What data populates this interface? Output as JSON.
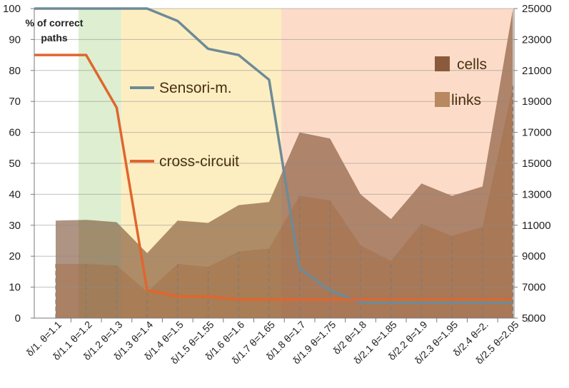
{
  "chart_data": {
    "type": "line",
    "categories": [
      "δ/1.  θ=1.1",
      "δ/1.1  θ=1.2",
      "δ/1.2  θ=1.3",
      "δ/1.3  θ=1.4",
      "δ/1.4  θ=1.5",
      "δ/1.5  θ=1.55",
      "δ/1.6  θ=1.6",
      "δ/1.7  θ=1.65",
      "δ/1.8  θ=1.7",
      "δ/1.9  θ=1.75",
      "δ/2  θ=1.8",
      "δ/2.1  θ=1.85",
      "δ/2.2  θ=1.9",
      "δ/2.3  θ=1.95",
      "δ/2.4  θ=2.",
      "δ/2.5  θ=2.05"
    ],
    "y_left": {
      "title_line1": "% of correct",
      "title_line2": "paths",
      "range": [
        0,
        100
      ],
      "ticks": [
        "0",
        "10",
        "20",
        "30",
        "40",
        "50",
        "60",
        "70",
        "80",
        "90",
        "100"
      ]
    },
    "y_right": {
      "range": [
        5000,
        25000
      ],
      "ticks": [
        "5000",
        "7000",
        "9000",
        "11000",
        "13000",
        "15000",
        "17000",
        "19000",
        "21000",
        "23000",
        "25000"
      ]
    },
    "grid": true,
    "line_series": [
      {
        "name": "Sensori-m.",
        "axis": "left",
        "color": "#6e8b96",
        "x": [
          -0.7,
          0,
          1,
          2,
          3,
          4,
          5,
          6,
          7,
          8,
          9,
          10,
          11,
          12,
          13,
          14,
          15
        ],
        "values": [
          100,
          100,
          100,
          100,
          100,
          96,
          87,
          85,
          77,
          16,
          9,
          5,
          5,
          5,
          5,
          5,
          5
        ]
      },
      {
        "name": "cross-circuit",
        "axis": "left",
        "color": "#e0662e",
        "x": [
          -0.7,
          0,
          1,
          2,
          3,
          4,
          5,
          6,
          7,
          8,
          9,
          10,
          11,
          12,
          13,
          14,
          15
        ],
        "values": [
          85,
          85,
          85,
          68,
          9,
          7,
          7,
          6,
          6,
          6,
          6,
          6,
          6,
          6,
          6,
          6,
          6
        ]
      }
    ],
    "area_series": [
      {
        "name": "cells",
        "axis": "right",
        "color": "#6e3c1e",
        "opacity": 0.55,
        "values": [
          11300,
          11350,
          11200,
          9200,
          11300,
          11150,
          12300,
          12500,
          17000,
          16600,
          13000,
          11400,
          13700,
          12900,
          13500,
          25000
        ]
      },
      {
        "name": "links",
        "axis": "right",
        "color": "#a56a40",
        "opacity": 0.45,
        "values": [
          8500,
          8500,
          8400,
          6700,
          8500,
          8300,
          9300,
          9500,
          12900,
          12600,
          9700,
          8700,
          11100,
          10300,
          10900,
          20000
        ]
      }
    ],
    "bands": [
      {
        "from": -0.75,
        "to": 0.75,
        "color": "#ffffff"
      },
      {
        "from": 0.75,
        "to": 2.15,
        "color": "#ddefd0"
      },
      {
        "from": 2.15,
        "to": 7.4,
        "color": "#fdeec2"
      },
      {
        "from": 7.4,
        "to": 15.0,
        "color": "#fcdcc8"
      }
    ],
    "legend": {
      "placement": "inside",
      "entries": [
        "Sensori-m.",
        "cross-circuit",
        "cells",
        "links"
      ]
    }
  }
}
